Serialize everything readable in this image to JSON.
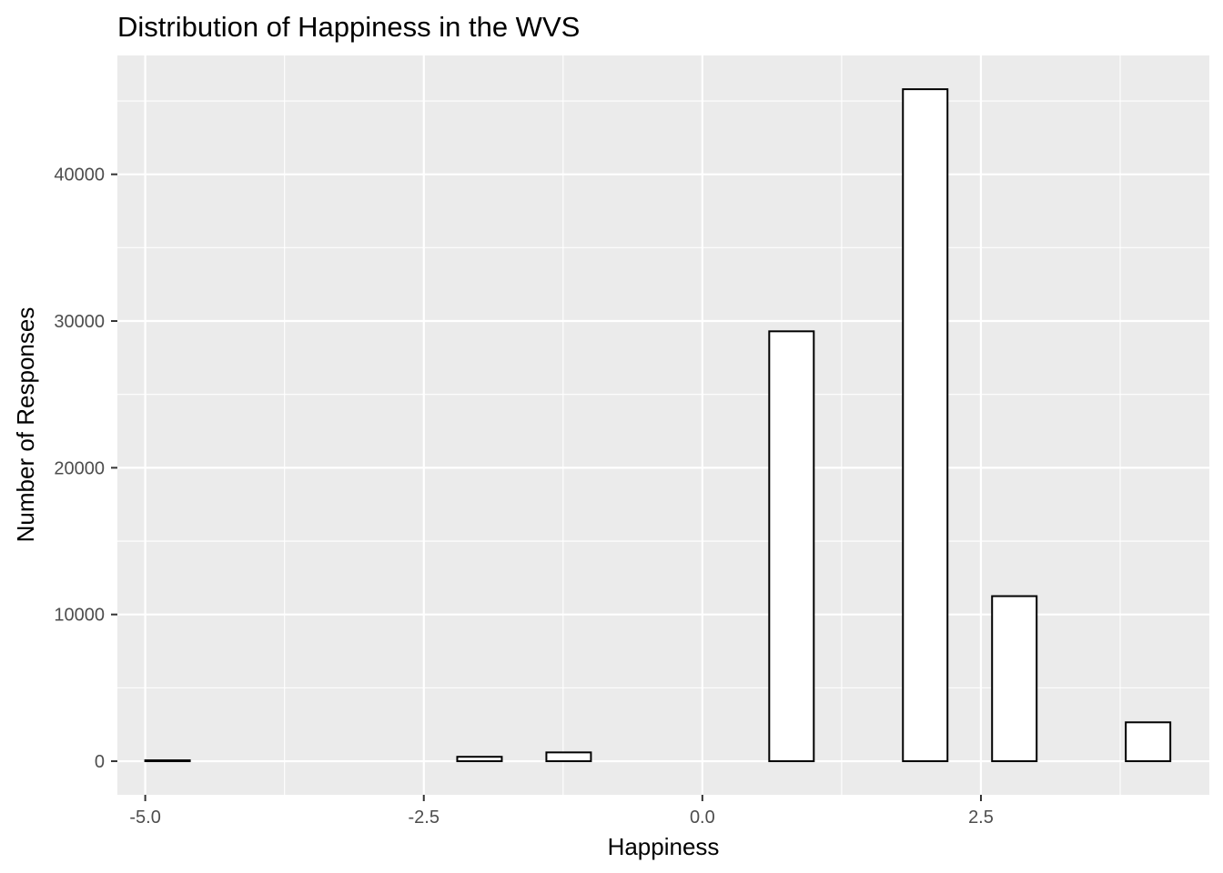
{
  "chart_data": {
    "type": "bar",
    "title": "Distribution of Happiness in the WVS",
    "xlabel": "Happiness",
    "ylabel": "Number of Responses",
    "xlim": [
      -5.25,
      4.55
    ],
    "ylim": [
      -2290,
      48100
    ],
    "x_ticks": [
      -5.0,
      -2.5,
      0.0,
      2.5
    ],
    "x_tick_labels": [
      "-5.0",
      "-2.5",
      "0.0",
      "2.5"
    ],
    "y_ticks": [
      0,
      10000,
      20000,
      30000,
      40000
    ],
    "y_tick_labels": [
      "0",
      "10000",
      "20000",
      "30000",
      "40000"
    ],
    "bin_width": 0.4,
    "bins": [
      {
        "x": -4.8,
        "count": 60
      },
      {
        "x": -4.4,
        "count": 0
      },
      {
        "x": -4.0,
        "count": 0
      },
      {
        "x": -3.6,
        "count": 0
      },
      {
        "x": -3.2,
        "count": 0
      },
      {
        "x": -2.8,
        "count": 0
      },
      {
        "x": -2.4,
        "count": 0
      },
      {
        "x": -2.0,
        "count": 300
      },
      {
        "x": -1.6,
        "count": 0
      },
      {
        "x": -1.2,
        "count": 600
      },
      {
        "x": -0.8,
        "count": 0
      },
      {
        "x": -0.4,
        "count": 0
      },
      {
        "x": 0.0,
        "count": 0
      },
      {
        "x": 0.4,
        "count": 0
      },
      {
        "x": 0.8,
        "count": 29300
      },
      {
        "x": 1.2,
        "count": 0
      },
      {
        "x": 1.6,
        "count": 0
      },
      {
        "x": 2.0,
        "count": 45800
      },
      {
        "x": 2.4,
        "count": 0
      },
      {
        "x": 2.8,
        "count": 11250
      },
      {
        "x": 3.2,
        "count": 0
      },
      {
        "x": 3.6,
        "count": 0
      },
      {
        "x": 4.0,
        "count": 2650
      }
    ],
    "grid": true,
    "colors": {
      "panel_background": "#ebebeb",
      "grid_line": "#ffffff",
      "bar_fill": "#ffffff",
      "bar_outline": "#000000",
      "tick_text": "#4d4d4d",
      "tick_mark": "#333333"
    }
  }
}
